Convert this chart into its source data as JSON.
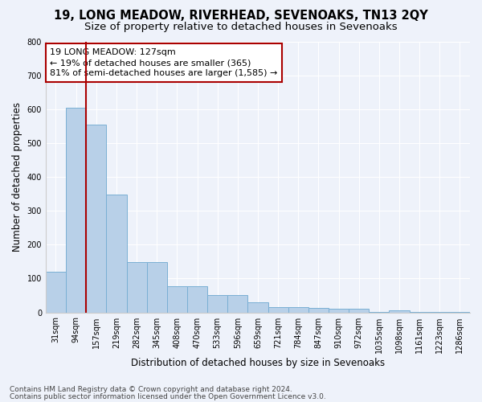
{
  "title": "19, LONG MEADOW, RIVERHEAD, SEVENOAKS, TN13 2QY",
  "subtitle": "Size of property relative to detached houses in Sevenoaks",
  "xlabel": "Distribution of detached houses by size in Sevenoaks",
  "ylabel": "Number of detached properties",
  "categories": [
    "31sqm",
    "94sqm",
    "157sqm",
    "219sqm",
    "282sqm",
    "345sqm",
    "408sqm",
    "470sqm",
    "533sqm",
    "596sqm",
    "659sqm",
    "721sqm",
    "784sqm",
    "847sqm",
    "910sqm",
    "972sqm",
    "1035sqm",
    "1098sqm",
    "1161sqm",
    "1223sqm",
    "1286sqm"
  ],
  "values": [
    120,
    605,
    555,
    348,
    148,
    148,
    77,
    77,
    52,
    52,
    30,
    16,
    16,
    13,
    10,
    10,
    1,
    7,
    1,
    1,
    1
  ],
  "bar_color": "#b8d0e8",
  "bar_edge_color": "#7aafd4",
  "vline_x": 1.5,
  "vline_color": "#aa0000",
  "annotation_text": "19 LONG MEADOW: 127sqm\n← 19% of detached houses are smaller (365)\n81% of semi-detached houses are larger (1,585) →",
  "annotation_box_color": "white",
  "annotation_box_edge": "#aa0000",
  "ylim": [
    0,
    800
  ],
  "yticks": [
    0,
    100,
    200,
    300,
    400,
    500,
    600,
    700,
    800
  ],
  "footer1": "Contains HM Land Registry data © Crown copyright and database right 2024.",
  "footer2": "Contains public sector information licensed under the Open Government Licence v3.0.",
  "bg_color": "#eef2fa",
  "plot_bg_color": "#eef2fa",
  "grid_color": "white",
  "title_fontsize": 10.5,
  "subtitle_fontsize": 9.5,
  "axis_label_fontsize": 8.5,
  "tick_fontsize": 7,
  "footer_fontsize": 6.5,
  "annotation_fontsize": 8
}
